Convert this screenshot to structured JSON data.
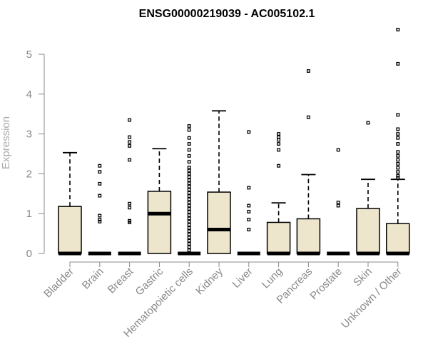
{
  "chart_data": {
    "type": "boxplot",
    "title": "ENSG00000219039 - AC005102.1",
    "xlabel": "",
    "ylabel": "Expression",
    "ylim": [
      0,
      5.7
    ],
    "yticks": [
      0,
      1,
      2,
      3,
      4,
      5
    ],
    "box_fill": "#ede6cc",
    "median_color": "#000000",
    "categories": [
      "Bladder",
      "Brain",
      "Breast",
      "Gastric",
      "Hematopoietic cells",
      "Kidney",
      "Liver",
      "Lung",
      "Pancreas",
      "Prostate",
      "Skin",
      "Unknown / Other"
    ],
    "boxes": [
      {
        "name": "Bladder",
        "min": 0,
        "q1": 0,
        "median": 0,
        "q3": 1.18,
        "max": 2.53,
        "outliers": []
      },
      {
        "name": "Brain",
        "min": 0,
        "q1": 0,
        "median": 0,
        "q3": 0,
        "max": 0,
        "outliers": [
          0.8,
          0.85,
          0.95,
          1.45,
          1.75,
          2.05,
          2.2
        ]
      },
      {
        "name": "Breast",
        "min": 0,
        "q1": 0,
        "median": 0,
        "q3": 0,
        "max": 0,
        "outliers": [
          0.78,
          0.82,
          1.15,
          1.25,
          2.35,
          2.7,
          2.8,
          2.92,
          3.35
        ]
      },
      {
        "name": "Gastric",
        "min": 0,
        "q1": 0,
        "median": 1.0,
        "q3": 1.56,
        "max": 2.63,
        "outliers": []
      },
      {
        "name": "Hematopoietic cells",
        "min": 0,
        "q1": 0,
        "median": 0,
        "q3": 0,
        "max": 0,
        "outliers": [
          0.08,
          0.16,
          0.24,
          0.32,
          0.4,
          0.48,
          0.56,
          0.64,
          0.72,
          0.8,
          0.88,
          0.96,
          1.04,
          1.12,
          1.2,
          1.28,
          1.36,
          1.44,
          1.52,
          1.6,
          1.68,
          1.76,
          1.84,
          1.92,
          2.0,
          2.08,
          2.16,
          2.3,
          2.45,
          2.6,
          2.75,
          2.9,
          3.1,
          3.2
        ]
      },
      {
        "name": "Kidney",
        "min": 0,
        "q1": 0,
        "median": 0.6,
        "q3": 1.54,
        "max": 3.58,
        "outliers": []
      },
      {
        "name": "Liver",
        "min": 0,
        "q1": 0,
        "median": 0,
        "q3": 0,
        "max": 0,
        "outliers": [
          0.6,
          0.85,
          1.05,
          1.2,
          1.65,
          3.05
        ]
      },
      {
        "name": "Lung",
        "min": 0,
        "q1": 0,
        "median": 0,
        "q3": 0.78,
        "max": 1.27,
        "outliers": [
          2.2,
          2.6,
          2.75,
          2.85,
          2.92,
          3.0
        ]
      },
      {
        "name": "Pancreas",
        "min": 0,
        "q1": 0,
        "median": 0,
        "q3": 0.87,
        "max": 1.98,
        "outliers": [
          3.42,
          4.58
        ]
      },
      {
        "name": "Prostate",
        "min": 0,
        "q1": 0,
        "median": 0,
        "q3": 0,
        "max": 0,
        "outliers": [
          1.2,
          1.28,
          2.6
        ]
      },
      {
        "name": "Skin",
        "min": 0,
        "q1": 0,
        "median": 0,
        "q3": 1.13,
        "max": 1.86,
        "outliers": [
          3.28
        ]
      },
      {
        "name": "Unknown / Other",
        "min": 0,
        "q1": 0,
        "median": 0,
        "q3": 0.75,
        "max": 1.86,
        "outliers": [
          1.9,
          1.95,
          2.05,
          2.15,
          2.25,
          2.35,
          2.45,
          2.55,
          2.75,
          2.9,
          3.0,
          3.12,
          3.48,
          4.76,
          5.62
        ]
      }
    ]
  }
}
